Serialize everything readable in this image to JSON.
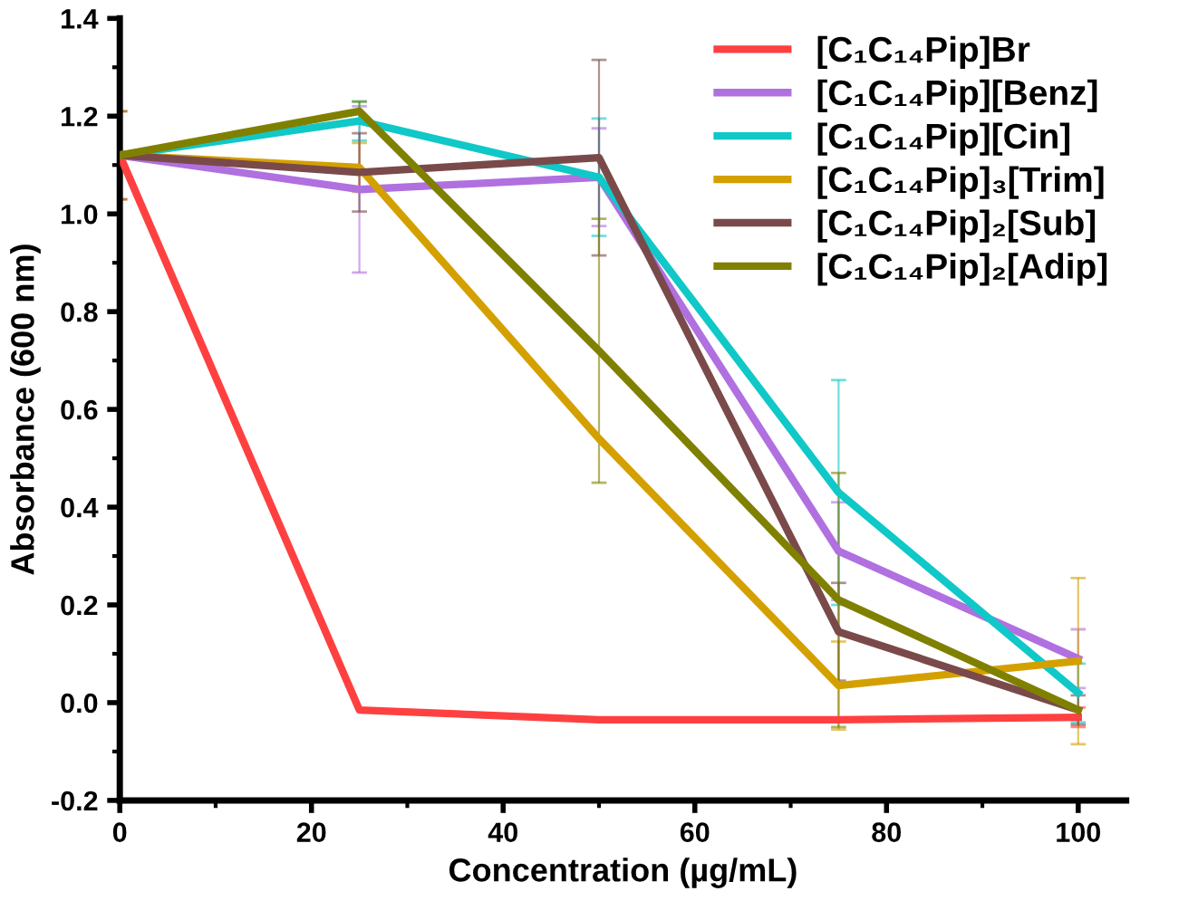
{
  "chart_data": {
    "type": "line",
    "xlabel": "Concentration (µg/mL)",
    "ylabel": "Absorbance (600 nm)",
    "x": [
      0,
      25,
      50,
      75,
      100
    ],
    "xlim": [
      0,
      105
    ],
    "xticks": [
      0,
      20,
      40,
      60,
      80,
      100
    ],
    "ylim": [
      -0.2,
      1.4
    ],
    "yticks": [
      {
        "value": -0.2,
        "label": "-0.2"
      },
      {
        "value": 0,
        "label": "0.0"
      },
      0.2,
      0.4,
      0.6,
      0.8,
      {
        "value": 1,
        "label": "1.0"
      },
      1.2,
      1.4
    ],
    "legend": "top right",
    "grid": false,
    "marker": "none",
    "line_style": "solid",
    "series": [
      {
        "name": "[C₁C₁₄Pip]Br",
        "color": "#ff4040",
        "values": [
          1.12,
          -0.015,
          -0.035,
          -0.035,
          -0.03
        ],
        "errors": [
          0.09,
          null,
          null,
          null,
          0.02
        ]
      },
      {
        "name": "[C₁C₁₄Pip][Benz]",
        "color": "#b070e0",
        "values": [
          1.12,
          1.05,
          1.075,
          0.31,
          0.09
        ],
        "errors": [
          null,
          0.17,
          0.1,
          0.1,
          0.06
        ]
      },
      {
        "name": "[C₁C₁₄Pip][Cin]",
        "color": "#10c8c8",
        "values": [
          1.12,
          1.19,
          1.075,
          0.43,
          0.02
        ],
        "errors": [
          null,
          0.04,
          0.12,
          0.23,
          0.06
        ]
      },
      {
        "name": "[C₁C₁₄Pip]₃[Trim]",
        "color": "#d4a000",
        "values": [
          1.12,
          1.095,
          0.54,
          0.035,
          0.085
        ],
        "errors": [
          null,
          0.05,
          null,
          0.09,
          0.17
        ]
      },
      {
        "name": "[C₁C₁₄Pip]₂[Sub]",
        "color": "#7a4a4a",
        "values": [
          1.12,
          1.085,
          1.115,
          0.145,
          -0.015
        ],
        "errors": [
          null,
          0.08,
          0.2,
          0.1,
          0.03
        ]
      },
      {
        "name": "[C₁C₁₄Pip]₂[Adip]",
        "color": "#808000",
        "values": [
          1.12,
          1.21,
          0.72,
          0.21,
          -0.015
        ],
        "errors": [
          0.09,
          0.02,
          0.27,
          0.26,
          null
        ]
      }
    ]
  }
}
